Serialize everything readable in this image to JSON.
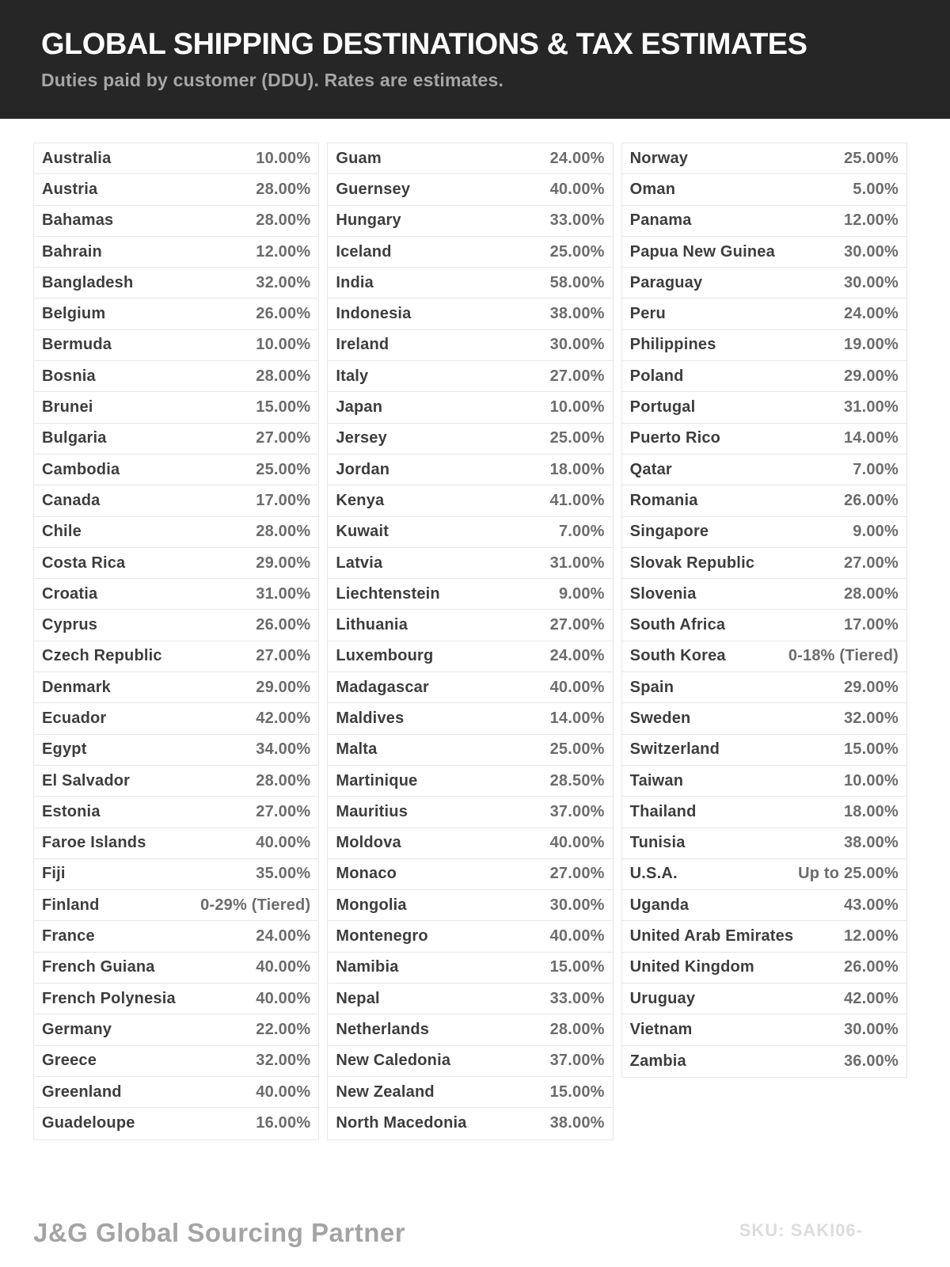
{
  "header": {
    "title": "GLOBAL SHIPPING DESTINATIONS & TAX ESTIMATES",
    "subtitle": "Duties paid by customer (DDU). Rates are estimates."
  },
  "colors": {
    "header_bg": "#262626",
    "title_text": "#ffffff",
    "subtitle_text": "#a6a6a6",
    "country_text": "#3d3d3d",
    "rate_text": "#6c6c6c",
    "row_border": "#e7e7e7"
  },
  "columns": [
    {
      "rows": [
        {
          "country": "Australia",
          "rate": "10.00%"
        },
        {
          "country": "Austria",
          "rate": "28.00%"
        },
        {
          "country": "Bahamas",
          "rate": "28.00%"
        },
        {
          "country": "Bahrain",
          "rate": "12.00%"
        },
        {
          "country": "Bangladesh",
          "rate": "32.00%"
        },
        {
          "country": "Belgium",
          "rate": "26.00%"
        },
        {
          "country": "Bermuda",
          "rate": "10.00%"
        },
        {
          "country": "Bosnia",
          "rate": "28.00%"
        },
        {
          "country": "Brunei",
          "rate": "15.00%"
        },
        {
          "country": "Bulgaria",
          "rate": "27.00%"
        },
        {
          "country": "Cambodia",
          "rate": "25.00%"
        },
        {
          "country": "Canada",
          "rate": "17.00%"
        },
        {
          "country": "Chile",
          "rate": "28.00%"
        },
        {
          "country": "Costa Rica",
          "rate": "29.00%"
        },
        {
          "country": "Croatia",
          "rate": "31.00%"
        },
        {
          "country": "Cyprus",
          "rate": "26.00%"
        },
        {
          "country": "Czech Republic",
          "rate": "27.00%"
        },
        {
          "country": "Denmark",
          "rate": "29.00%"
        },
        {
          "country": "Ecuador",
          "rate": "42.00%"
        },
        {
          "country": "Egypt",
          "rate": "34.00%"
        },
        {
          "country": "El Salvador",
          "rate": "28.00%"
        },
        {
          "country": "Estonia",
          "rate": "27.00%"
        },
        {
          "country": "Faroe Islands",
          "rate": "40.00%"
        },
        {
          "country": "Fiji",
          "rate": "35.00%"
        },
        {
          "country": "Finland",
          "rate": "0-29% (Tiered)"
        },
        {
          "country": "France",
          "rate": "24.00%"
        },
        {
          "country": "French Guiana",
          "rate": "40.00%"
        },
        {
          "country": "French Polynesia",
          "rate": "40.00%"
        },
        {
          "country": "Germany",
          "rate": "22.00%"
        },
        {
          "country": "Greece",
          "rate": "32.00%"
        },
        {
          "country": "Greenland",
          "rate": "40.00%"
        },
        {
          "country": "Guadeloupe",
          "rate": "16.00%"
        }
      ]
    },
    {
      "rows": [
        {
          "country": "Guam",
          "rate": "24.00%"
        },
        {
          "country": "Guernsey",
          "rate": "40.00%"
        },
        {
          "country": "Hungary",
          "rate": "33.00%"
        },
        {
          "country": "Iceland",
          "rate": "25.00%"
        },
        {
          "country": "India",
          "rate": "58.00%"
        },
        {
          "country": "Indonesia",
          "rate": "38.00%"
        },
        {
          "country": "Ireland",
          "rate": "30.00%"
        },
        {
          "country": "Italy",
          "rate": "27.00%"
        },
        {
          "country": "Japan",
          "rate": "10.00%"
        },
        {
          "country": "Jersey",
          "rate": "25.00%"
        },
        {
          "country": "Jordan",
          "rate": "18.00%"
        },
        {
          "country": "Kenya",
          "rate": "41.00%"
        },
        {
          "country": "Kuwait",
          "rate": "7.00%"
        },
        {
          "country": "Latvia",
          "rate": "31.00%"
        },
        {
          "country": "Liechtenstein",
          "rate": "9.00%"
        },
        {
          "country": "Lithuania",
          "rate": "27.00%"
        },
        {
          "country": "Luxembourg",
          "rate": "24.00%"
        },
        {
          "country": "Madagascar",
          "rate": "40.00%"
        },
        {
          "country": "Maldives",
          "rate": "14.00%"
        },
        {
          "country": "Malta",
          "rate": "25.00%"
        },
        {
          "country": "Martinique",
          "rate": "28.50%"
        },
        {
          "country": "Mauritius",
          "rate": "37.00%"
        },
        {
          "country": "Moldova",
          "rate": "40.00%"
        },
        {
          "country": "Monaco",
          "rate": "27.00%"
        },
        {
          "country": "Mongolia",
          "rate": "30.00%"
        },
        {
          "country": "Montenegro",
          "rate": "40.00%"
        },
        {
          "country": "Namibia",
          "rate": "15.00%"
        },
        {
          "country": "Nepal",
          "rate": "33.00%"
        },
        {
          "country": "Netherlands",
          "rate": "28.00%"
        },
        {
          "country": "New Caledonia",
          "rate": "37.00%"
        },
        {
          "country": "New Zealand",
          "rate": "15.00%"
        },
        {
          "country": "North Macedonia",
          "rate": "38.00%"
        }
      ]
    },
    {
      "rows": [
        {
          "country": "Norway",
          "rate": "25.00%"
        },
        {
          "country": "Oman",
          "rate": "5.00%"
        },
        {
          "country": "Panama",
          "rate": "12.00%"
        },
        {
          "country": "Papua New Guinea",
          "rate": "30.00%"
        },
        {
          "country": "Paraguay",
          "rate": "30.00%"
        },
        {
          "country": "Peru",
          "rate": "24.00%"
        },
        {
          "country": "Philippines",
          "rate": "19.00%"
        },
        {
          "country": "Poland",
          "rate": "29.00%"
        },
        {
          "country": "Portugal",
          "rate": "31.00%"
        },
        {
          "country": "Puerto Rico",
          "rate": "14.00%"
        },
        {
          "country": "Qatar",
          "rate": "7.00%"
        },
        {
          "country": "Romania",
          "rate": "26.00%"
        },
        {
          "country": "Singapore",
          "rate": "9.00%"
        },
        {
          "country": "Slovak Republic",
          "rate": "27.00%"
        },
        {
          "country": "Slovenia",
          "rate": "28.00%"
        },
        {
          "country": "South Africa",
          "rate": "17.00%"
        },
        {
          "country": "South Korea",
          "rate": "0-18% (Tiered)"
        },
        {
          "country": "Spain",
          "rate": "29.00%"
        },
        {
          "country": "Sweden",
          "rate": "32.00%"
        },
        {
          "country": "Switzerland",
          "rate": "15.00%"
        },
        {
          "country": "Taiwan",
          "rate": "10.00%"
        },
        {
          "country": "Thailand",
          "rate": "18.00%"
        },
        {
          "country": "Tunisia",
          "rate": "38.00%"
        },
        {
          "country": "U.S.A.",
          "rate": "Up to 25.00%"
        },
        {
          "country": "Uganda",
          "rate": "43.00%"
        },
        {
          "country": "United Arab Emirates",
          "rate": "12.00%"
        },
        {
          "country": "United Kingdom",
          "rate": "26.00%"
        },
        {
          "country": "Uruguay",
          "rate": "42.00%"
        },
        {
          "country": "Vietnam",
          "rate": "30.00%"
        },
        {
          "country": "Zambia",
          "rate": "36.00%"
        }
      ]
    }
  ],
  "footer": {
    "brand": "J&G Global Sourcing Partner",
    "sku": "SKU: SAKI06-"
  }
}
